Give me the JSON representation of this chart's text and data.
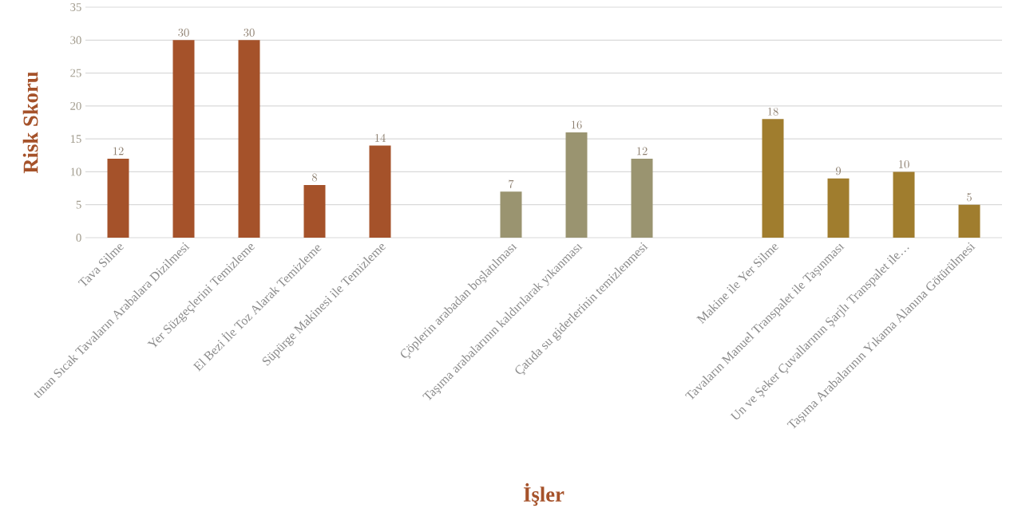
{
  "chart_data": {
    "type": "bar",
    "xlabel": "İşler",
    "ylabel": "Risk Skoru",
    "categories": [
      "Tava Silme",
      "tınan Sıcak Tavaların Arabalara Dizilmesi",
      "Yer Süzgeçlerini Temizleme",
      "El Bezi İle Toz Alarak Temizleme",
      "Süpürge Makinesi ile Temizleme",
      null,
      "Çöplerin arabadan boşlatılması",
      "Taşıma arabalarının kaldırılarak yıkanması",
      "Çatıda su giderlerinin temizlenmesi",
      null,
      "Makine ile Yer Silme",
      "Tavaların Manuel Transpalet ile Taşınması",
      "Un ve Şeker Çuvallarının Şarjlı Transpalet ile…",
      "Taşıma Arabalarının Yıkama Alanına Götürülmesi"
    ],
    "values": [
      12,
      30,
      30,
      8,
      14,
      null,
      7,
      16,
      12,
      null,
      18,
      9,
      10,
      5
    ],
    "colors": [
      "#a5522a",
      "#a5522a",
      "#a5522a",
      "#a5522a",
      "#a5522a",
      null,
      "#9a9470",
      "#9a9470",
      "#9a9470",
      null,
      "#a07d2e",
      "#a07d2e",
      "#a07d2e",
      "#a07d2e"
    ],
    "ylim": [
      0,
      35
    ],
    "yticks": [
      0,
      5,
      10,
      15,
      20,
      25,
      30,
      35
    ],
    "grid": "y",
    "data_labels": true
  }
}
